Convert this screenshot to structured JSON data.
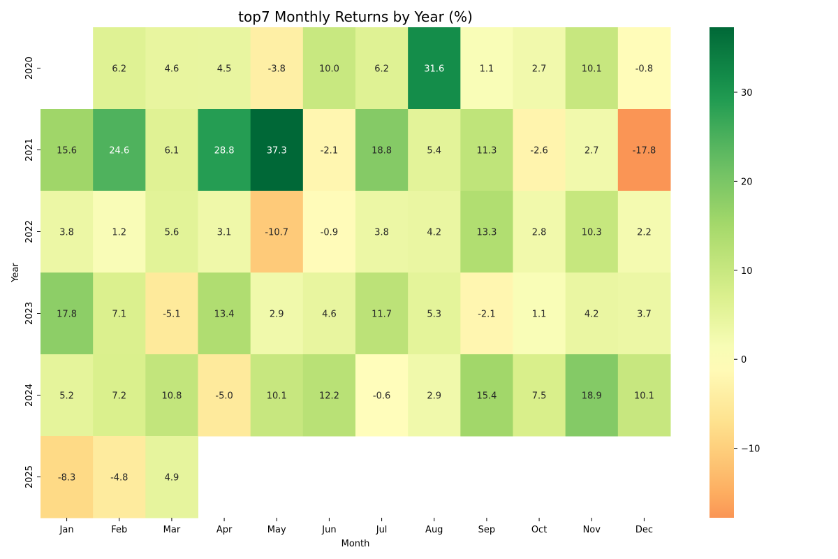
{
  "chart_data": {
    "type": "heatmap",
    "title": "top7 Monthly Returns by Year (%)",
    "xlabel": "Month",
    "ylabel": "Year",
    "x_categories": [
      "Jan",
      "Feb",
      "Mar",
      "Apr",
      "May",
      "Jun",
      "Jul",
      "Aug",
      "Sep",
      "Oct",
      "Nov",
      "Dec"
    ],
    "y_categories": [
      "2020",
      "2021",
      "2022",
      "2023",
      "2024",
      "2025"
    ],
    "values": [
      [
        null,
        6.2,
        4.6,
        4.5,
        -3.8,
        10.0,
        6.2,
        31.6,
        1.1,
        2.7,
        10.1,
        -0.8
      ],
      [
        15.6,
        24.6,
        6.1,
        28.8,
        37.3,
        -2.1,
        18.8,
        5.4,
        11.3,
        -2.6,
        2.7,
        -17.8
      ],
      [
        3.8,
        1.2,
        5.6,
        3.1,
        -10.7,
        -0.9,
        3.8,
        4.2,
        13.3,
        2.8,
        10.3,
        2.2
      ],
      [
        17.8,
        7.1,
        -5.1,
        13.4,
        2.9,
        4.6,
        11.7,
        5.3,
        -2.1,
        1.1,
        4.2,
        3.7
      ],
      [
        5.2,
        7.2,
        10.8,
        -5.0,
        10.1,
        12.2,
        -0.6,
        2.9,
        15.4,
        7.5,
        18.9,
        10.1
      ],
      [
        -8.3,
        -4.8,
        4.9,
        null,
        null,
        null,
        null,
        null,
        null,
        null,
        null,
        null
      ]
    ],
    "value_format": "0.0",
    "colormap": "RdYlGn",
    "center": 0,
    "vmin": -17.8,
    "vmax": 37.3,
    "colorbar": {
      "ticks": [
        30,
        20,
        10,
        0,
        -10
      ],
      "tick_labels": [
        "30",
        "20",
        "10",
        "0",
        "−10"
      ]
    },
    "grid": false,
    "legend": "colorbar-right"
  }
}
